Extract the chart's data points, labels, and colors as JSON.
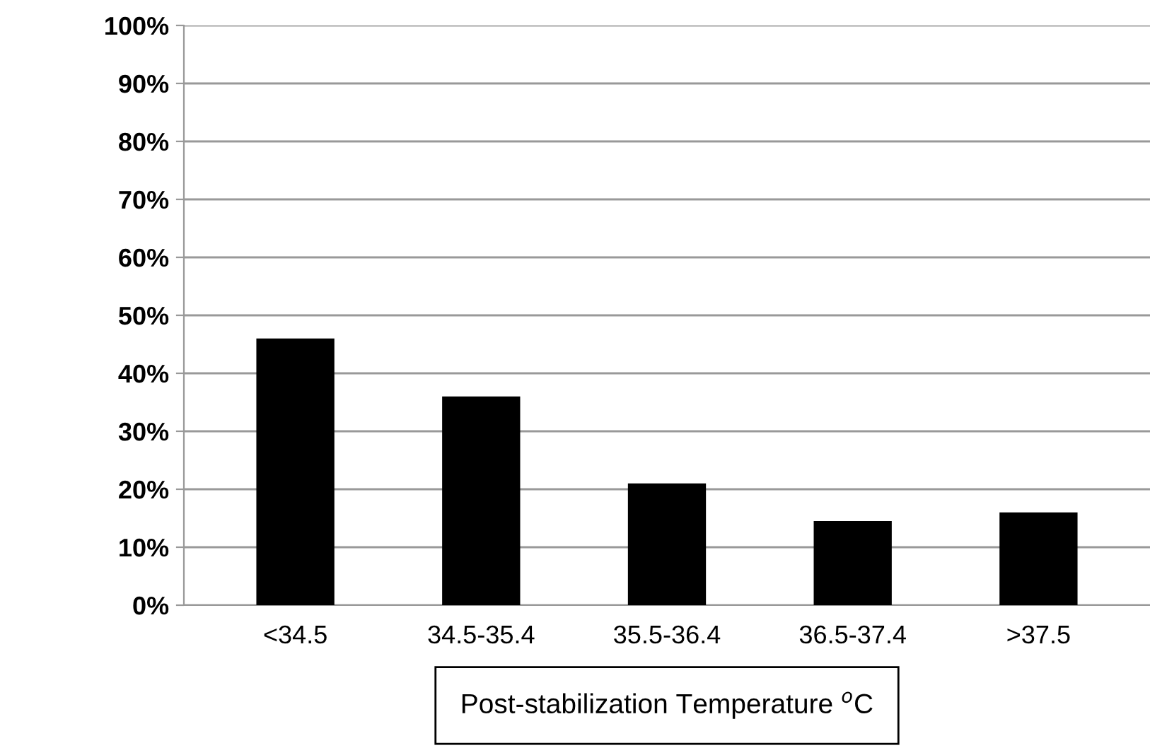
{
  "chart_data": {
    "type": "bar",
    "xlabel": "Post-stabilization Temperature $^{o}$C",
    "categories": [
      "<34.5",
      "34.5-35.4",
      "35.5-36.4",
      "36.5-37.4",
      ">37.5"
    ],
    "values": [
      46,
      36,
      21,
      14.5,
      16
    ],
    "color": "#000000",
    "ylim": [
      0,
      100
    ],
    "yticks": [
      {
        "value": 0,
        "label": "0%"
      },
      {
        "value": 10,
        "label": "10%"
      },
      {
        "value": 20,
        "label": "20%"
      },
      {
        "value": 30,
        "label": "30%"
      },
      {
        "value": 40,
        "label": "40%"
      },
      {
        "value": 50,
        "label": "50%"
      },
      {
        "value": 60,
        "label": "60%"
      },
      {
        "value": 70,
        "label": "70%"
      },
      {
        "value": 80,
        "label": "80%"
      },
      {
        "value": 90,
        "label": "90%"
      },
      {
        "value": 100,
        "label": "100%"
      }
    ],
    "grid": "y"
  }
}
